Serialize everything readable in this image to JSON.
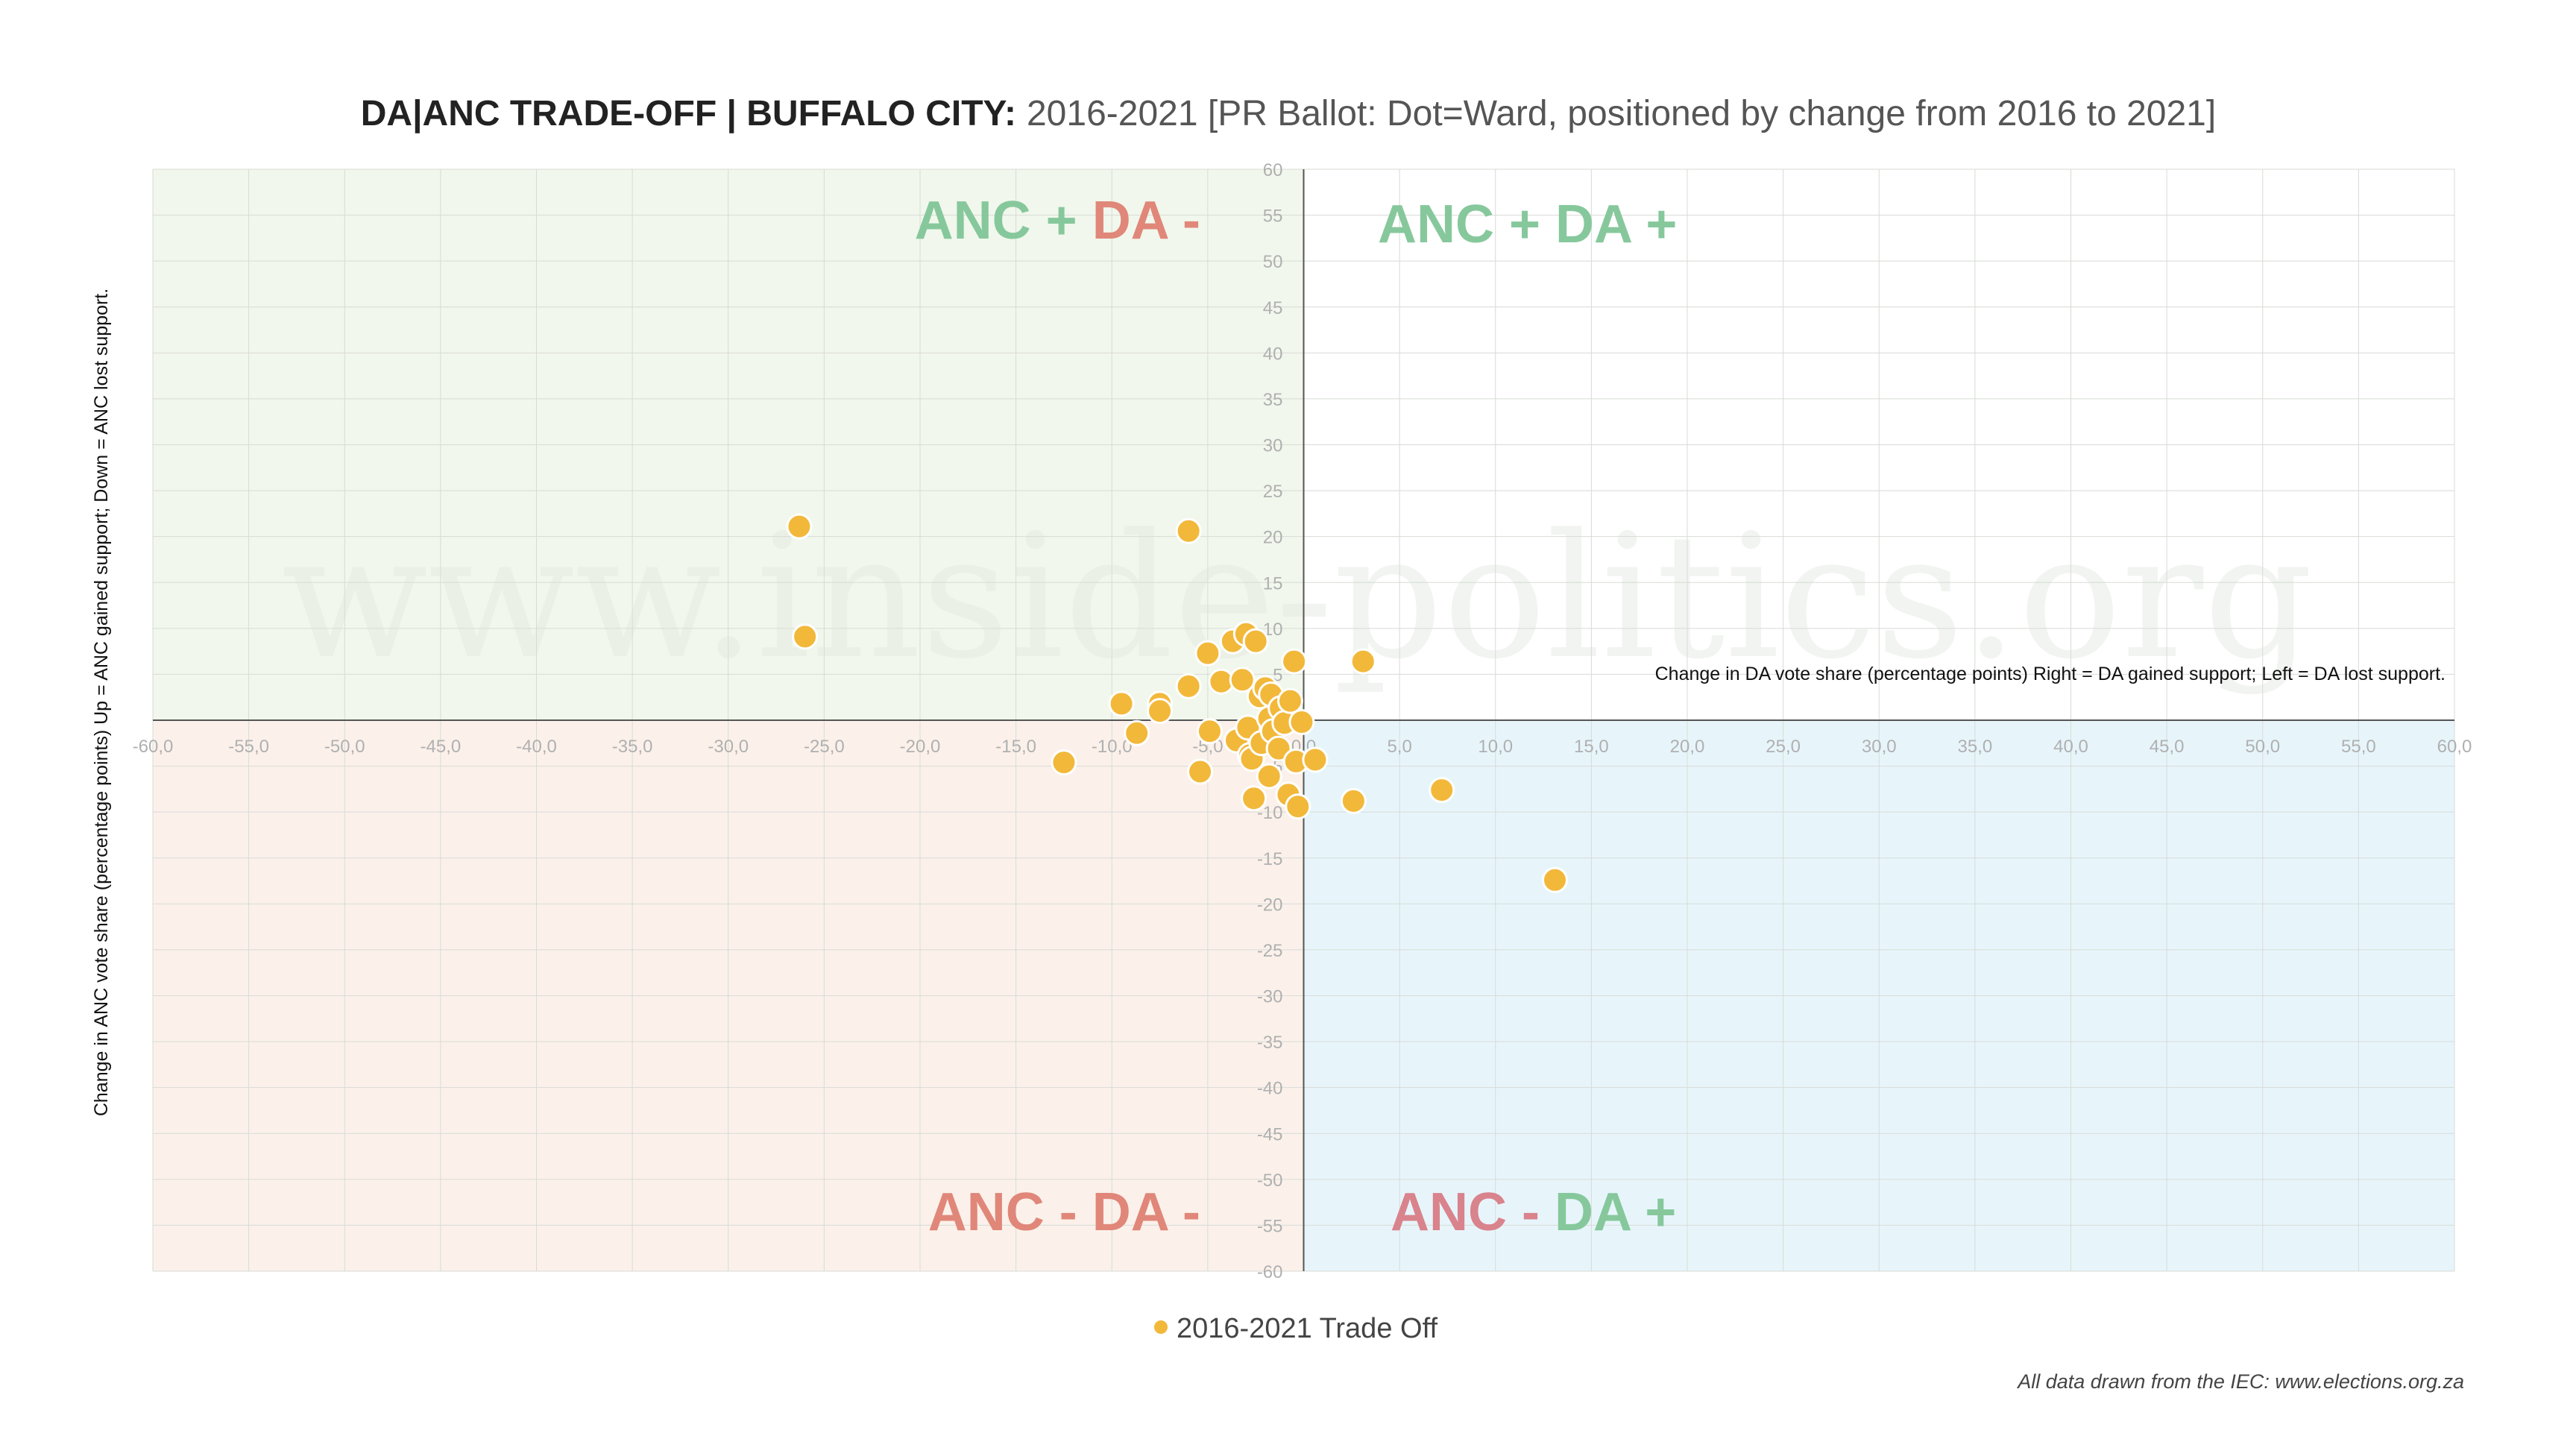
{
  "chart_data": {
    "type": "scatter",
    "title_bold": "DA|ANC TRADE-OFF | BUFFALO CITY:",
    "title_rest": "2016-2021 [PR Ballot: Dot=Ward, positioned by change from 2016 to 2021]",
    "xlabel": "Change in DA vote share (percentage points) Right = DA gained support; Left = DA lost support.",
    "ylabel": "Change in ANC vote share (percentage points) Up = ANC gained support; Down = ANC lost support.",
    "xlim": [
      -60,
      60
    ],
    "ylim": [
      -60,
      60
    ],
    "x_ticks": [
      "-60,0",
      "-55,0",
      "-50,0",
      "-45,0",
      "-40,0",
      "-35,0",
      "-30,0",
      "-25,0",
      "-20,0",
      "-15,0",
      "-10,0",
      "-5,0",
      "0,0",
      "5,0",
      "10,0",
      "15,0",
      "20,0",
      "25,0",
      "30,0",
      "35,0",
      "40,0",
      "45,0",
      "50,0",
      "55,0",
      "60,0"
    ],
    "y_ticks": [
      "60",
      "55",
      "50",
      "45",
      "40",
      "35",
      "30",
      "25",
      "20",
      "15",
      "10",
      "5",
      "0",
      "-5",
      "-10",
      "-15",
      "-20",
      "-25",
      "-30",
      "-35",
      "-40",
      "-45",
      "-50",
      "-55",
      "-60"
    ],
    "quadrant_labels": [
      {
        "name": "quadrant-label-top-left",
        "parts": [
          {
            "text": "ANC + ",
            "color": "#86c89c"
          },
          {
            "text": "DA -",
            "color": "#e0877a"
          }
        ]
      },
      {
        "name": "quadrant-label-top-right",
        "parts": [
          {
            "text": "ANC + DA +",
            "color": "#86c89c"
          }
        ]
      },
      {
        "name": "quadrant-label-bottom-left",
        "parts": [
          {
            "text": "ANC - DA -",
            "color": "#e0877a"
          }
        ]
      },
      {
        "name": "quadrant-label-bottom-right",
        "parts": [
          {
            "text": "ANC - ",
            "color": "#d9838c"
          },
          {
            "text": "DA +",
            "color": "#86c89c"
          }
        ]
      }
    ],
    "quadrant_colors": {
      "top_left": "#f1f7ec",
      "top_right": "#ffffff",
      "bottom_left": "#fbf1ea",
      "bottom_right": "#e7f5fb"
    },
    "series": [
      {
        "name": "2016-2021 Trade Off",
        "color": "#f2b83a",
        "points": [
          {
            "x": -26.3,
            "y": 21.1
          },
          {
            "x": -26.0,
            "y": 9.1
          },
          {
            "x": -6.0,
            "y": 20.6
          },
          {
            "x": -12.5,
            "y": -4.6
          },
          {
            "x": -9.5,
            "y": 1.8
          },
          {
            "x": -8.7,
            "y": -1.4
          },
          {
            "x": -7.5,
            "y": 1.8
          },
          {
            "x": -7.5,
            "y": 1.0
          },
          {
            "x": -6.0,
            "y": 3.7
          },
          {
            "x": -5.4,
            "y": -5.6
          },
          {
            "x": -5.0,
            "y": 7.3
          },
          {
            "x": -4.9,
            "y": -1.2
          },
          {
            "x": -4.3,
            "y": 4.2
          },
          {
            "x": -3.7,
            "y": 8.6
          },
          {
            "x": -3.5,
            "y": -2.2
          },
          {
            "x": -3.2,
            "y": 4.4
          },
          {
            "x": -3.0,
            "y": 9.4
          },
          {
            "x": -2.9,
            "y": -0.8
          },
          {
            "x": -2.8,
            "y": -3.8
          },
          {
            "x": -2.7,
            "y": -4.2
          },
          {
            "x": -2.5,
            "y": 8.6
          },
          {
            "x": -2.6,
            "y": -8.5
          },
          {
            "x": -2.3,
            "y": 2.6
          },
          {
            "x": -2.0,
            "y": 3.5
          },
          {
            "x": -2.2,
            "y": -2.5
          },
          {
            "x": -1.8,
            "y": 0.2
          },
          {
            "x": -1.7,
            "y": 2.8
          },
          {
            "x": -1.8,
            "y": -6.1
          },
          {
            "x": -1.6,
            "y": -1.2
          },
          {
            "x": -1.3,
            "y": -3.1
          },
          {
            "x": -1.2,
            "y": 1.3
          },
          {
            "x": -1.0,
            "y": -0.3
          },
          {
            "x": -0.8,
            "y": -8.1
          },
          {
            "x": -0.7,
            "y": 2.1
          },
          {
            "x": -0.4,
            "y": -4.5
          },
          {
            "x": -0.5,
            "y": 6.4
          },
          {
            "x": -0.3,
            "y": -9.4
          },
          {
            "x": -0.1,
            "y": -0.2
          },
          {
            "x": 0.6,
            "y": -4.3
          },
          {
            "x": 2.6,
            "y": -8.8
          },
          {
            "x": 3.1,
            "y": 6.4
          },
          {
            "x": 7.2,
            "y": -7.6
          },
          {
            "x": 13.1,
            "y": -17.4
          }
        ]
      }
    ],
    "legend": {
      "label": "2016-2021 Trade Off",
      "position": "bottom-center"
    },
    "watermark": "www.inside-politics.org",
    "source": "All data drawn from the IEC: www.elections.org.za"
  }
}
